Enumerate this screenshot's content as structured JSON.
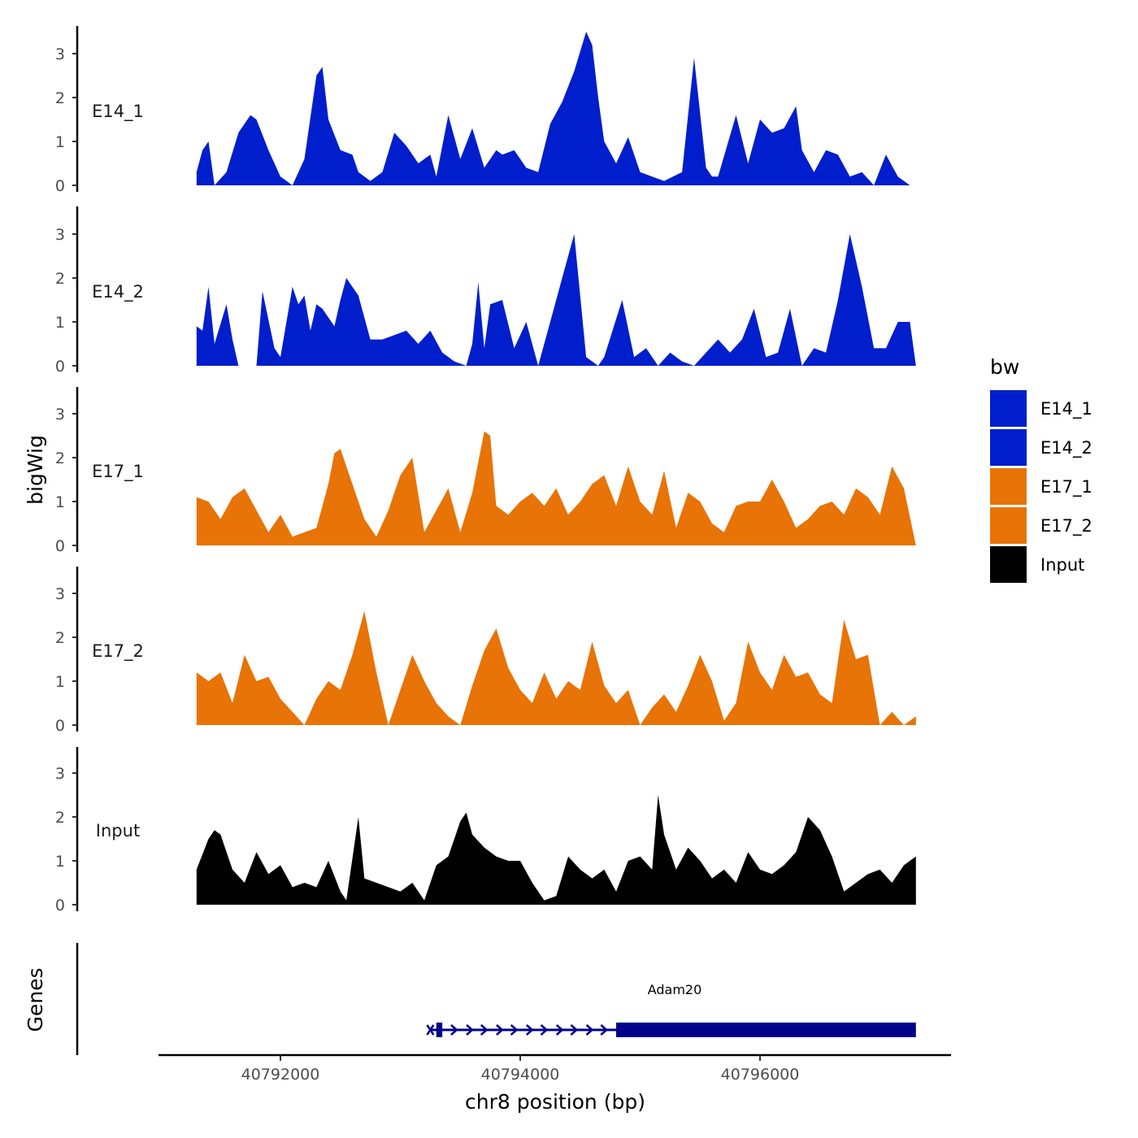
{
  "chart_data": {
    "type": "area",
    "y_axis_title": "bigWig",
    "x_axis_title": "chr8 position (bp)",
    "genes_axis_title": "Genes",
    "x_ticks": [
      {
        "value": 40792000,
        "label": "40792000"
      },
      {
        "value": 40794000,
        "label": "40794000"
      },
      {
        "value": 40796000,
        "label": "40796000"
      }
    ],
    "y_ticks": [
      {
        "value": 0,
        "label": "0"
      },
      {
        "value": 1,
        "label": "1"
      },
      {
        "value": 2,
        "label": "2"
      },
      {
        "value": 3,
        "label": "3"
      }
    ],
    "y_range": [
      0,
      3.6
    ],
    "x_range": [
      40791000,
      40797300
    ],
    "legend": {
      "title": "bw",
      "entries": [
        {
          "label": "E14_1",
          "color": "#001ECC"
        },
        {
          "label": "E14_2",
          "color": "#001ECC"
        },
        {
          "label": "E17_1",
          "color": "#E87306"
        },
        {
          "label": "E17_2",
          "color": "#E87306"
        },
        {
          "label": "Input",
          "color": "#000000"
        }
      ]
    },
    "series": [
      {
        "name": "E14_1",
        "color": "#001ECC",
        "x": [
          40791300,
          40791350,
          40791400,
          40791450,
          40791550,
          40791650,
          40791750,
          40791800,
          40791900,
          40792000,
          40792100,
          40792200,
          40792300,
          40792350,
          40792400,
          40792500,
          40792600,
          40792650,
          40792750,
          40792850,
          40792950,
          40793050,
          40793150,
          40793250,
          40793300,
          40793400,
          40793500,
          40793600,
          40793700,
          40793800,
          40793850,
          40793950,
          40794050,
          40794150,
          40794250,
          40794350,
          40794450,
          40794550,
          40794600,
          40794650,
          40794700,
          40794800,
          40794900,
          40795000,
          40795100,
          40795200,
          40795350,
          40795450,
          40795550,
          40795600,
          40795650,
          40795800,
          40795900,
          40796000,
          40796100,
          40796200,
          40796300,
          40796350,
          40796450,
          40796550,
          40796650,
          40796750,
          40796850,
          40796950,
          40797050,
          40797150,
          40797250
        ],
        "values": [
          0.3,
          0.8,
          1.0,
          0.0,
          0.3,
          1.2,
          1.6,
          1.5,
          0.8,
          0.2,
          0.0,
          0.6,
          2.5,
          2.7,
          1.5,
          0.8,
          0.7,
          0.3,
          0.1,
          0.3,
          1.2,
          0.9,
          0.5,
          0.7,
          0.2,
          1.6,
          0.6,
          1.3,
          0.4,
          0.8,
          0.7,
          0.8,
          0.4,
          0.3,
          1.4,
          1.9,
          2.6,
          3.5,
          3.2,
          2.0,
          1.0,
          0.5,
          1.1,
          0.3,
          0.2,
          0.1,
          0.3,
          2.9,
          0.4,
          0.2,
          0.2,
          1.6,
          0.5,
          1.5,
          1.2,
          1.3,
          1.8,
          0.8,
          0.3,
          0.8,
          0.7,
          0.2,
          0.3,
          0.0,
          0.7,
          0.2,
          0.0
        ]
      },
      {
        "name": "E14_2",
        "color": "#001ECC",
        "x": [
          40791300,
          40791350,
          40791400,
          40791450,
          40791550,
          40791600,
          40791650,
          40791700,
          40791800,
          40791850,
          40791950,
          40792000,
          40792100,
          40792150,
          40792200,
          40792250,
          40792300,
          40792350,
          40792450,
          40792500,
          40792550,
          40792650,
          40792750,
          40792850,
          40792950,
          40793050,
          40793150,
          40793250,
          40793350,
          40793450,
          40793550,
          40793600,
          40793650,
          40793700,
          40793750,
          40793850,
          40793950,
          40794050,
          40794150,
          40794200,
          40794250,
          40794350,
          40794450,
          40794550,
          40794650,
          40794700,
          40794850,
          40794950,
          40795050,
          40795150,
          40795250,
          40795350,
          40795450,
          40795550,
          40795650,
          40795750,
          40795850,
          40795950,
          40796050,
          40796150,
          40796250,
          40796350,
          40796450,
          40796550,
          40796650,
          40796750,
          40796850,
          40796950,
          40797050,
          40797150,
          40797250,
          40797300
        ],
        "values": [
          0.9,
          0.8,
          1.8,
          0.5,
          1.4,
          0.6,
          0.0,
          0.0,
          0.0,
          1.7,
          0.4,
          0.2,
          1.8,
          1.4,
          1.6,
          0.8,
          1.4,
          1.3,
          0.9,
          1.5,
          2.0,
          1.6,
          0.6,
          0.6,
          0.7,
          0.8,
          0.5,
          0.8,
          0.3,
          0.1,
          0.0,
          0.5,
          1.9,
          0.4,
          1.4,
          1.5,
          0.4,
          1.0,
          0.0,
          0.5,
          1.0,
          2.0,
          3.0,
          0.2,
          0.0,
          0.2,
          1.5,
          0.2,
          0.4,
          0.0,
          0.3,
          0.1,
          0.0,
          0.3,
          0.6,
          0.3,
          0.6,
          1.3,
          0.2,
          0.3,
          1.3,
          0.0,
          0.4,
          0.3,
          1.5,
          3.0,
          1.8,
          0.4,
          0.4,
          1.0,
          1.0,
          0.0
        ],
        "gaps": [
          40791800,
          40795100,
          40795450
        ]
      },
      {
        "name": "E17_1",
        "color": "#E87306",
        "x": [
          40791300,
          40791400,
          40791500,
          40791600,
          40791700,
          40791800,
          40791900,
          40792000,
          40792100,
          40792200,
          40792300,
          40792400,
          40792450,
          40792500,
          40792600,
          40792700,
          40792800,
          40792900,
          40793000,
          40793100,
          40793200,
          40793300,
          40793400,
          40793500,
          40793600,
          40793700,
          40793750,
          40793800,
          40793900,
          40794000,
          40794100,
          40794200,
          40794300,
          40794400,
          40794500,
          40794600,
          40794700,
          40794800,
          40794900,
          40795000,
          40795100,
          40795200,
          40795300,
          40795400,
          40795500,
          40795600,
          40795700,
          40795800,
          40795900,
          40796000,
          40796100,
          40796200,
          40796300,
          40796400,
          40796500,
          40796600,
          40796700,
          40796800,
          40796900,
          40797000,
          40797100,
          40797200,
          40797300
        ],
        "values": [
          1.1,
          1.0,
          0.6,
          1.1,
          1.3,
          0.8,
          0.3,
          0.7,
          0.2,
          0.3,
          0.4,
          1.4,
          2.1,
          2.2,
          1.4,
          0.6,
          0.2,
          0.8,
          1.6,
          2.0,
          0.3,
          0.8,
          1.3,
          0.3,
          1.2,
          2.6,
          2.5,
          0.9,
          0.7,
          1.0,
          1.2,
          0.9,
          1.3,
          0.7,
          1.0,
          1.4,
          1.6,
          0.9,
          1.8,
          1.0,
          0.7,
          1.7,
          0.4,
          1.2,
          1.0,
          0.5,
          0.3,
          0.9,
          1.0,
          1.0,
          1.5,
          1.0,
          0.4,
          0.6,
          0.9,
          1.0,
          0.7,
          1.3,
          1.1,
          0.7,
          1.8,
          1.3,
          0.0
        ]
      },
      {
        "name": "E17_2",
        "color": "#E87306",
        "x": [
          40791300,
          40791400,
          40791500,
          40791600,
          40791700,
          40791800,
          40791900,
          40792000,
          40792100,
          40792200,
          40792300,
          40792400,
          40792500,
          40792600,
          40792700,
          40792800,
          40792900,
          40793000,
          40793100,
          40793200,
          40793300,
          40793400,
          40793500,
          40793600,
          40793700,
          40793800,
          40793900,
          40794000,
          40794100,
          40794200,
          40794300,
          40794400,
          40794500,
          40794600,
          40794700,
          40794800,
          40794900,
          40795000,
          40795100,
          40795200,
          40795300,
          40795400,
          40795500,
          40795600,
          40795700,
          40795800,
          40795900,
          40796000,
          40796100,
          40796200,
          40796300,
          40796400,
          40796500,
          40796600,
          40796700,
          40796800,
          40796900,
          40797000,
          40797100,
          40797200,
          40797300
        ],
        "values": [
          1.2,
          1.0,
          1.2,
          0.5,
          1.6,
          1.0,
          1.1,
          0.6,
          0.3,
          0.0,
          0.6,
          1.0,
          0.8,
          1.6,
          2.6,
          1.2,
          0.0,
          0.8,
          1.6,
          1.0,
          0.5,
          0.2,
          0.0,
          0.9,
          1.7,
          2.2,
          1.3,
          0.8,
          0.5,
          1.2,
          0.6,
          1.0,
          0.8,
          1.9,
          0.9,
          0.5,
          0.8,
          0.0,
          0.4,
          0.7,
          0.3,
          0.9,
          1.6,
          1.0,
          0.1,
          0.5,
          1.9,
          1.2,
          0.8,
          1.6,
          1.1,
          1.2,
          0.7,
          0.5,
          2.4,
          1.5,
          1.6,
          0.0,
          0.3,
          0.0,
          0.2
        ]
      },
      {
        "name": "Input",
        "color": "#000000",
        "x": [
          40791300,
          40791400,
          40791450,
          40791500,
          40791600,
          40791700,
          40791800,
          40791900,
          40792000,
          40792100,
          40792200,
          40792300,
          40792400,
          40792500,
          40792550,
          40792650,
          40792700,
          40792800,
          40792900,
          40793000,
          40793100,
          40793200,
          40793300,
          40793400,
          40793500,
          40793550,
          40793600,
          40793700,
          40793800,
          40793900,
          40794000,
          40794100,
          40794200,
          40794300,
          40794400,
          40794500,
          40794600,
          40794700,
          40794800,
          40794900,
          40795000,
          40795100,
          40795150,
          40795200,
          40795300,
          40795400,
          40795500,
          40795600,
          40795700,
          40795800,
          40795900,
          40796000,
          40796100,
          40796200,
          40796300,
          40796400,
          40796500,
          40796600,
          40796700,
          40796800,
          40796900,
          40797000,
          40797100,
          40797200,
          40797300
        ],
        "values": [
          0.8,
          1.5,
          1.7,
          1.6,
          0.8,
          0.5,
          1.2,
          0.7,
          0.9,
          0.4,
          0.5,
          0.4,
          1.0,
          0.3,
          0.1,
          2.0,
          0.6,
          0.5,
          0.4,
          0.3,
          0.5,
          0.1,
          0.9,
          1.1,
          1.9,
          2.1,
          1.6,
          1.3,
          1.1,
          1.0,
          1.0,
          0.5,
          0.1,
          0.2,
          1.1,
          0.8,
          0.6,
          0.8,
          0.3,
          1.0,
          1.1,
          0.8,
          2.5,
          1.6,
          0.8,
          1.3,
          1.0,
          0.6,
          0.8,
          0.5,
          1.2,
          0.8,
          0.7,
          0.9,
          1.2,
          2.0,
          1.7,
          1.1,
          0.3,
          0.5,
          0.7,
          0.8,
          0.5,
          0.9,
          1.1
        ]
      }
    ],
    "genes": [
      {
        "name": "Adam20",
        "strand": "+",
        "start": 40793250,
        "end": 40797300,
        "exons": [
          [
            40793300,
            40793350
          ],
          [
            40794800,
            40797300
          ]
        ],
        "arrow_positions": [
          40793450,
          40793580,
          40793700,
          40793830,
          40793950,
          40794080,
          40794200,
          40794330,
          40794450,
          40794580,
          40794700
        ]
      }
    ]
  }
}
